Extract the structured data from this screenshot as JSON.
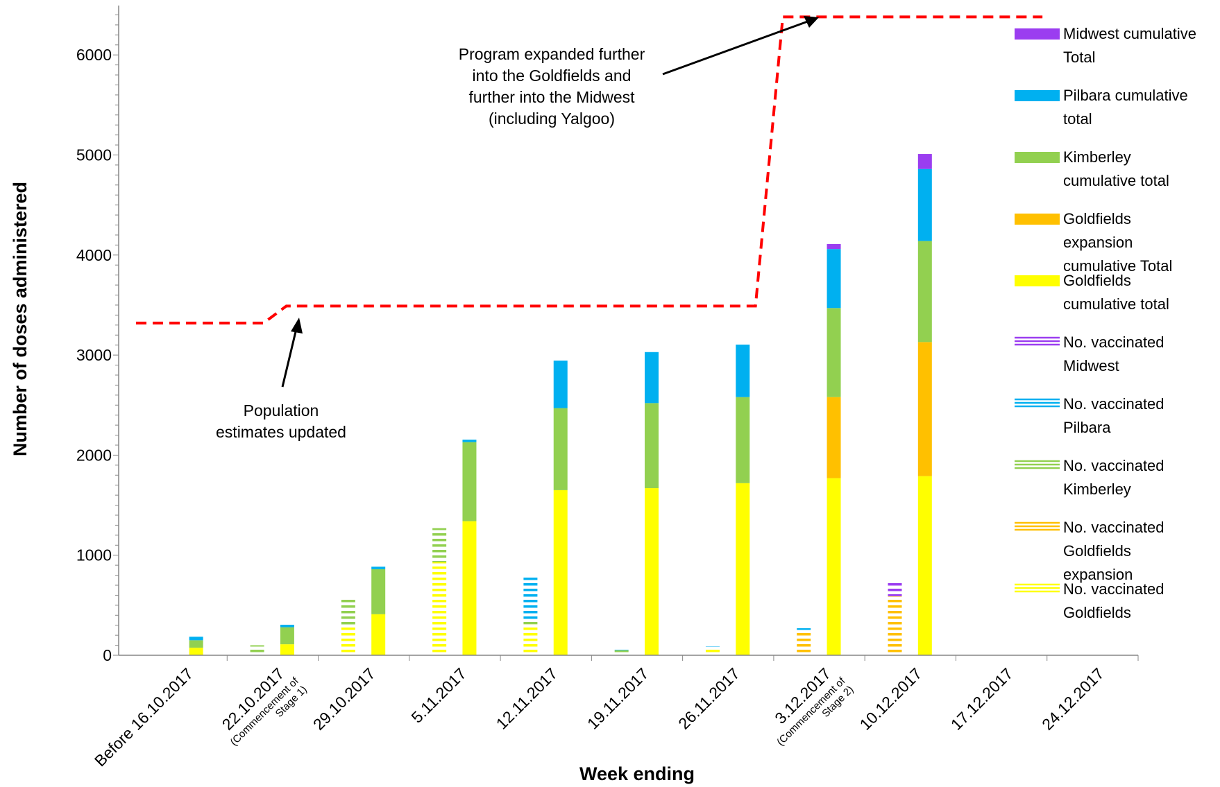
{
  "chart_data": {
    "type": "bar",
    "title": "",
    "xlabel": "Week ending",
    "ylabel": "Number of doses administered",
    "ylim": [
      0,
      6500
    ],
    "yticks": [
      0,
      1000,
      2000,
      3000,
      4000,
      5000,
      6000
    ],
    "grid": false,
    "legend_position": "right",
    "categories": [
      {
        "label": "Before 16.10.2017",
        "sub": ""
      },
      {
        "label": "22.10.2017",
        "sub": "(Commencement of Stage 1)"
      },
      {
        "label": "29.10.2017",
        "sub": ""
      },
      {
        "label": "5.11.2017",
        "sub": ""
      },
      {
        "label": "12.11.2017",
        "sub": ""
      },
      {
        "label": "19.11.2017",
        "sub": ""
      },
      {
        "label": "26.11.2017",
        "sub": ""
      },
      {
        "label": "3.12.2017",
        "sub": "(Commencement of Stage 2)"
      },
      {
        "label": "10.12.2017",
        "sub": ""
      },
      {
        "label": "17.12.2017",
        "sub": ""
      },
      {
        "label": "24.12.2017",
        "sub": ""
      }
    ],
    "series": [
      {
        "name": "Midwest cumulative Total",
        "color": "#9B3DF0",
        "pattern": "solid",
        "stack": "cumulative",
        "values": [
          0,
          0,
          0,
          0,
          0,
          0,
          0,
          50,
          150,
          0,
          0
        ]
      },
      {
        "name": "Pilbara cumulative total",
        "color": "#00B0F0",
        "pattern": "solid",
        "stack": "cumulative",
        "values": [
          35,
          25,
          25,
          25,
          475,
          510,
          525,
          590,
          720,
          0,
          0
        ]
      },
      {
        "name": "Kimberley cumulative total",
        "color": "#92D050",
        "pattern": "solid",
        "stack": "cumulative",
        "values": [
          75,
          170,
          450,
          790,
          820,
          850,
          860,
          890,
          1010,
          0,
          0
        ]
      },
      {
        "name": "Goldfields expansion cumulative Total",
        "color": "#FFC000",
        "pattern": "solid",
        "stack": "cumulative",
        "values": [
          0,
          0,
          0,
          0,
          0,
          0,
          0,
          810,
          1340,
          0,
          0
        ]
      },
      {
        "name": "Goldfields cumulative total",
        "color": "#FFFF00",
        "pattern": "solid",
        "stack": "cumulative",
        "values": [
          75,
          110,
          410,
          1340,
          1650,
          1670,
          1720,
          1770,
          1790,
          0,
          0
        ]
      },
      {
        "name": "No. vaccinated Midwest",
        "color": "#9B3DF0",
        "pattern": "striped",
        "stack": "weekly",
        "values": [
          0,
          0,
          0,
          0,
          0,
          0,
          0,
          0,
          150,
          0,
          0
        ]
      },
      {
        "name": "No. vaccinated Pilbara",
        "color": "#00B0F0",
        "pattern": "striped",
        "stack": "weekly",
        "values": [
          0,
          0,
          0,
          0,
          450,
          10,
          10,
          30,
          0,
          0,
          0
        ]
      },
      {
        "name": "No. vaccinated Kimberley",
        "color": "#92D050",
        "pattern": "striped",
        "stack": "weekly",
        "values": [
          0,
          70,
          290,
          340,
          30,
          30,
          0,
          0,
          0,
          0,
          0
        ]
      },
      {
        "name": "No. vaccinated Goldfields expansion",
        "color": "#FFC000",
        "pattern": "striped",
        "stack": "weekly",
        "values": [
          0,
          0,
          0,
          0,
          0,
          0,
          0,
          240,
          590,
          0,
          0
        ]
      },
      {
        "name": "No. vaccinated Goldfields",
        "color": "#FFFF00",
        "pattern": "striped",
        "stack": "weekly",
        "values": [
          0,
          30,
          290,
          930,
          310,
          20,
          80,
          0,
          0,
          0,
          0
        ]
      }
    ],
    "target_line": {
      "color": "#FF0000",
      "style": "dashed",
      "points": [
        [
          0,
          3320
        ],
        [
          1.4,
          3320
        ],
        [
          1.65,
          3490
        ],
        [
          6.8,
          3490
        ],
        [
          7.1,
          6380
        ],
        [
          9.95,
          6380
        ]
      ]
    },
    "annotations": [
      {
        "text_lines": [
          "Program expanded further",
          "into the Goldfields and",
          "further into the Midwest",
          "(including Yalgoo)"
        ]
      },
      {
        "text_lines": [
          "Population",
          "estimates updated"
        ]
      }
    ]
  }
}
